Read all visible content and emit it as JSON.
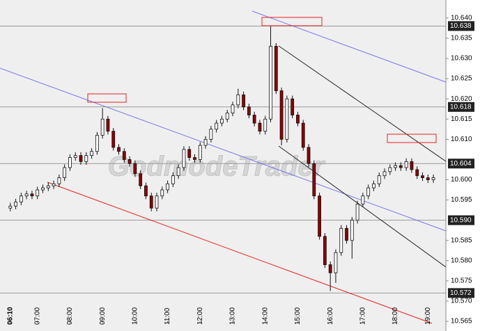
{
  "chart_data": {
    "type": "candlestick",
    "watermark": "GodmodeTrader",
    "x": [
      370,
      380,
      390,
      400,
      410,
      420,
      430,
      440,
      450,
      460,
      470,
      480,
      490,
      500,
      510,
      520,
      530,
      540,
      550,
      560,
      570,
      580,
      590,
      600,
      610,
      620,
      630,
      640,
      650,
      660,
      670,
      680,
      690,
      700,
      710,
      720,
      730,
      740,
      750,
      760,
      770,
      780,
      790,
      800,
      810,
      820,
      830,
      840,
      850,
      860,
      870,
      880,
      890,
      900,
      910,
      920,
      930,
      940,
      950,
      960,
      970,
      980,
      990,
      1000,
      1010,
      1020,
      1030,
      1040,
      1050,
      1060,
      1070,
      1080,
      1090,
      1100,
      1110,
      1120,
      1130,
      1140,
      1150
    ],
    "open": [
      10.593,
      10.5935,
      10.5945,
      10.596,
      10.5965,
      10.596,
      10.5975,
      10.598,
      10.5985,
      10.599,
      10.6005,
      10.603,
      10.6055,
      10.606,
      10.6045,
      10.606,
      10.607,
      10.611,
      10.615,
      10.612,
      10.608,
      10.607,
      10.605,
      10.604,
      10.6015,
      10.5985,
      10.596,
      10.593,
      10.596,
      10.5975,
      10.599,
      10.601,
      10.603,
      10.6075,
      10.6055,
      10.605,
      10.6085,
      10.61,
      10.6125,
      10.614,
      10.615,
      10.6165,
      10.6185,
      10.621,
      10.618,
      10.616,
      10.614,
      10.612,
      10.615,
      10.633,
      10.622,
      10.61,
      10.62,
      10.616,
      10.614,
      10.608,
      10.604,
      10.596,
      10.586,
      10.579,
      10.577,
      10.582,
      10.588,
      10.585,
      10.59,
      10.594,
      10.596,
      10.598,
      10.599,
      10.601,
      10.602,
      10.603,
      10.6035,
      10.603,
      10.6045,
      10.6025,
      10.601,
      10.6005,
      10.6
    ],
    "high": [
      10.5943,
      10.5953,
      10.5968,
      10.5973,
      10.5973,
      10.5983,
      10.5988,
      10.5993,
      10.5998,
      10.6013,
      10.6038,
      10.6063,
      10.6068,
      10.6068,
      10.6068,
      10.6078,
      10.6118,
      10.6177,
      10.6158,
      10.6128,
      10.6088,
      10.6078,
      10.6058,
      10.6048,
      10.6023,
      10.5993,
      10.5968,
      10.5968,
      10.5983,
      10.5998,
      10.6018,
      10.6038,
      10.6083,
      10.6083,
      10.6063,
      10.6093,
      10.6108,
      10.6133,
      10.6148,
      10.6158,
      10.6173,
      10.6193,
      10.6225,
      10.6218,
      10.6188,
      10.6168,
      10.6148,
      10.6158,
      10.638,
      10.6338,
      10.6228,
      10.6208,
      10.6208,
      10.6168,
      10.6148,
      10.6088,
      10.6048,
      10.5968,
      10.5868,
      10.5798,
      10.5828,
      10.5888,
      10.5888,
      10.5908,
      10.5948,
      10.5968,
      10.5988,
      10.5998,
      10.6018,
      10.6028,
      10.6038,
      10.6043,
      10.6043,
      10.6053,
      10.6053,
      10.6033,
      10.6018,
      10.6013,
      10.6013
    ],
    "low": [
      10.5922,
      10.5927,
      10.5937,
      10.5952,
      10.5952,
      10.5952,
      10.5967,
      10.5972,
      10.5977,
      10.5982,
      10.5997,
      10.6022,
      10.6047,
      10.6037,
      10.6037,
      10.6052,
      10.6062,
      10.6102,
      10.6112,
      10.6072,
      10.6062,
      10.6042,
      10.6032,
      10.6007,
      10.5977,
      10.5952,
      10.5922,
      10.5922,
      10.5952,
      10.5967,
      10.5982,
      10.6002,
      10.6022,
      10.6047,
      10.6042,
      10.6042,
      10.6077,
      10.6092,
      10.6117,
      10.6132,
      10.6142,
      10.6157,
      10.6177,
      10.6172,
      10.6152,
      10.6132,
      10.6112,
      10.6112,
      10.6142,
      10.6212,
      10.6085,
      10.6092,
      10.6152,
      10.6132,
      10.6072,
      10.6032,
      10.5952,
      10.5852,
      10.5782,
      10.5725,
      10.5745,
      10.5812,
      10.5842,
      10.5805,
      10.5892,
      10.5932,
      10.5952,
      10.5972,
      10.5982,
      10.6002,
      10.6012,
      10.6022,
      10.6022,
      10.6022,
      10.6017,
      10.6002,
      10.5997,
      10.5992,
      10.5992
    ],
    "close": [
      10.5935,
      10.5945,
      10.596,
      10.5965,
      10.596,
      10.5975,
      10.598,
      10.5985,
      10.599,
      10.6005,
      10.603,
      10.6055,
      10.606,
      10.6045,
      10.606,
      10.607,
      10.611,
      10.615,
      10.612,
      10.608,
      10.607,
      10.605,
      10.604,
      10.6015,
      10.5985,
      10.596,
      10.593,
      10.596,
      10.5975,
      10.599,
      10.601,
      10.603,
      10.6075,
      10.6055,
      10.605,
      10.6085,
      10.61,
      10.6125,
      10.614,
      10.615,
      10.6165,
      10.6185,
      10.621,
      10.618,
      10.616,
      10.614,
      10.612,
      10.615,
      10.633,
      10.622,
      10.61,
      10.62,
      10.616,
      10.614,
      10.608,
      10.604,
      10.596,
      10.586,
      10.579,
      10.577,
      10.582,
      10.588,
      10.585,
      10.59,
      10.594,
      10.596,
      10.598,
      10.599,
      10.601,
      10.602,
      10.603,
      10.6035,
      10.603,
      10.6045,
      10.6025,
      10.601,
      10.6005,
      10.6,
      10.6005
    ],
    "up_color": "#ffffff",
    "down_color": "#8b0000",
    "xlim": [
      351,
      1173
    ],
    "xticks": [
      {
        "value": 370,
        "label": "06:10"
      },
      {
        "value": 420,
        "label": "07:00"
      },
      {
        "value": 480,
        "label": "08:00"
      },
      {
        "value": 540,
        "label": "09:00"
      },
      {
        "value": 600,
        "label": "10:00"
      },
      {
        "value": 660,
        "label": "11:00"
      },
      {
        "value": 720,
        "label": "12:00"
      },
      {
        "value": 780,
        "label": "13:00"
      },
      {
        "value": 840,
        "label": "14:00"
      },
      {
        "value": 900,
        "label": "15:00"
      },
      {
        "value": 960,
        "label": "16:00"
      },
      {
        "value": 1020,
        "label": "17:00"
      },
      {
        "value": 1080,
        "label": "18:00"
      },
      {
        "value": 1140,
        "label": "19:00"
      }
    ],
    "ylim": [
      10.5645,
      10.641
    ],
    "yticks": [
      {
        "value": 10.64,
        "label": "10.640"
      },
      10.635,
      {
        "value": 10.63,
        "label": "10.630"
      },
      10.625,
      {
        "value": 10.62,
        "label": "10.620"
      },
      10.615,
      {
        "value": 10.61,
        "label": "10.610"
      },
      {
        "value": 10.6,
        "label": "10.600"
      },
      10.595,
      10.585,
      {
        "value": 10.58,
        "label": "10.580"
      },
      10.575,
      {
        "value": 10.57,
        "label": "10.570"
      },
      10.565
    ],
    "levels": [
      10.638,
      10.618,
      10.604,
      {
        "value": 10.59,
        "label": "10.590"
      },
      10.572
    ]
  }
}
